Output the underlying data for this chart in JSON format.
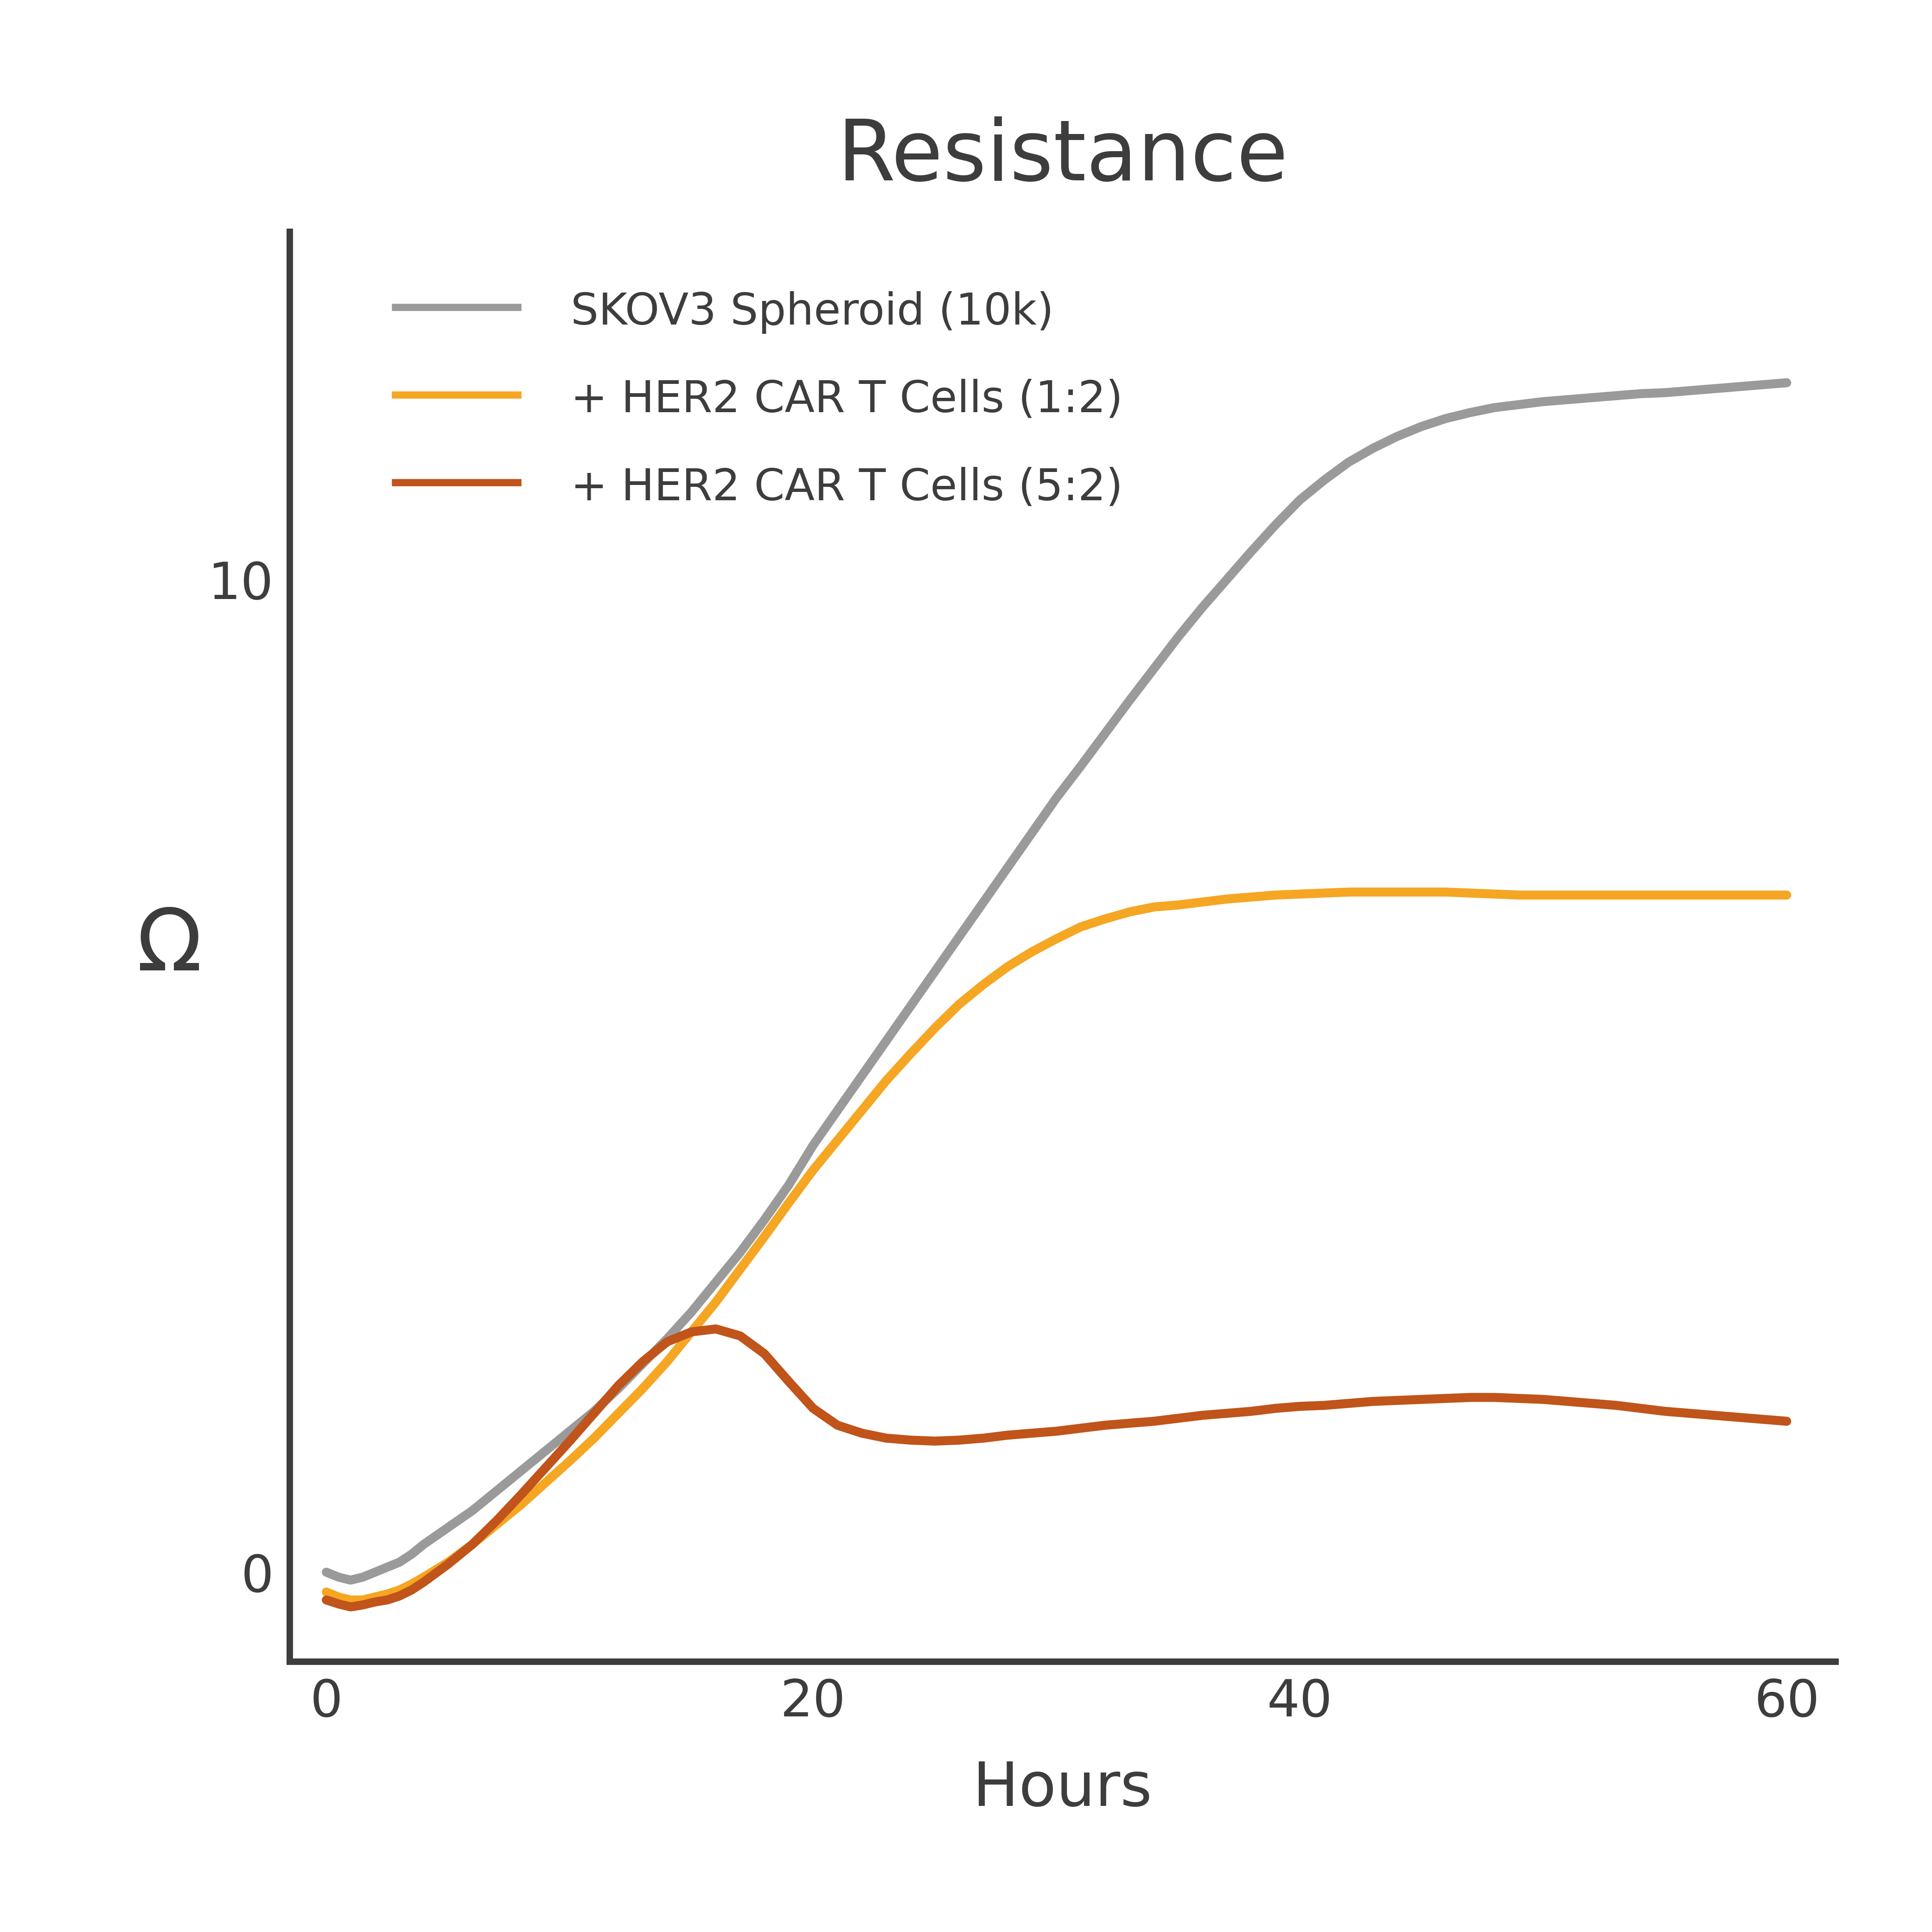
{
  "title": "Resistance",
  "xlabel": "Hours",
  "ylabel": "Ω",
  "xlim": [
    -1.5,
    62
  ],
  "ylim": [
    -0.9,
    13.5
  ],
  "xticks": [
    0,
    20,
    40,
    60
  ],
  "yticks": [
    0,
    10
  ],
  "background_color": "#ffffff",
  "title_fontsize": 130,
  "axis_label_fontsize": 95,
  "tick_fontsize": 80,
  "legend_fontsize": 68,
  "line_width": 14,
  "spine_color": "#3d3d3d",
  "text_color": "#3d3d3d",
  "series": [
    {
      "label": "SKOV3 Spheroid (10k)",
      "color": "#9a9a9a",
      "x": [
        0,
        0.5,
        1,
        1.5,
        2,
        2.5,
        3,
        3.5,
        4,
        5,
        6,
        7,
        8,
        9,
        10,
        11,
        12,
        13,
        14,
        15,
        16,
        17,
        18,
        19,
        20,
        21,
        22,
        23,
        24,
        25,
        26,
        27,
        28,
        29,
        30,
        31,
        32,
        33,
        34,
        35,
        36,
        37,
        38,
        39,
        40,
        41,
        42,
        43,
        44,
        45,
        46,
        47,
        48,
        49,
        50,
        51,
        52,
        53,
        54,
        55,
        56,
        57,
        58,
        59,
        60
      ],
      "y": [
        0.0,
        -0.05,
        -0.08,
        -0.05,
        0.0,
        0.05,
        0.1,
        0.18,
        0.28,
        0.45,
        0.62,
        0.82,
        1.02,
        1.22,
        1.42,
        1.62,
        1.85,
        2.1,
        2.35,
        2.62,
        2.92,
        3.22,
        3.55,
        3.9,
        4.3,
        4.65,
        5.0,
        5.35,
        5.7,
        6.05,
        6.4,
        6.75,
        7.1,
        7.45,
        7.8,
        8.12,
        8.45,
        8.78,
        9.1,
        9.42,
        9.72,
        10.0,
        10.28,
        10.55,
        10.8,
        11.0,
        11.18,
        11.32,
        11.44,
        11.54,
        11.62,
        11.68,
        11.73,
        11.76,
        11.79,
        11.81,
        11.83,
        11.85,
        11.87,
        11.88,
        11.9,
        11.92,
        11.94,
        11.96,
        11.98
      ]
    },
    {
      "label": "+ HER2 CAR T Cells (1:2)",
      "color": "#f5a623",
      "x": [
        0,
        0.5,
        1,
        1.5,
        2,
        2.5,
        3,
        3.5,
        4,
        5,
        6,
        7,
        8,
        9,
        10,
        11,
        12,
        13,
        14,
        15,
        16,
        17,
        18,
        19,
        20,
        21,
        22,
        23,
        24,
        25,
        26,
        27,
        28,
        29,
        30,
        31,
        32,
        33,
        34,
        35,
        36,
        37,
        38,
        39,
        40,
        41,
        42,
        43,
        44,
        45,
        46,
        47,
        48,
        49,
        50,
        51,
        52,
        53,
        54,
        55,
        56,
        57,
        58,
        59,
        60
      ],
      "y": [
        -0.2,
        -0.25,
        -0.28,
        -0.28,
        -0.25,
        -0.22,
        -0.18,
        -0.12,
        -0.05,
        0.1,
        0.28,
        0.48,
        0.68,
        0.9,
        1.12,
        1.35,
        1.6,
        1.85,
        2.12,
        2.42,
        2.72,
        3.05,
        3.38,
        3.72,
        4.05,
        4.35,
        4.65,
        4.95,
        5.22,
        5.48,
        5.72,
        5.92,
        6.1,
        6.25,
        6.38,
        6.5,
        6.58,
        6.65,
        6.7,
        6.72,
        6.75,
        6.78,
        6.8,
        6.82,
        6.83,
        6.84,
        6.85,
        6.85,
        6.85,
        6.85,
        6.85,
        6.84,
        6.83,
        6.82,
        6.82,
        6.82,
        6.82,
        6.82,
        6.82,
        6.82,
        6.82,
        6.82,
        6.82,
        6.82,
        6.82
      ]
    },
    {
      "label": "+ HER2 CAR T Cells (5:2)",
      "color": "#c0541a",
      "x": [
        0,
        0.5,
        1,
        1.5,
        2,
        2.5,
        3,
        3.5,
        4,
        5,
        6,
        7,
        8,
        9,
        10,
        11,
        12,
        13,
        14,
        15,
        16,
        17,
        18,
        19,
        20,
        21,
        22,
        23,
        24,
        25,
        26,
        27,
        28,
        29,
        30,
        31,
        32,
        33,
        34,
        35,
        36,
        37,
        38,
        39,
        40,
        41,
        42,
        43,
        44,
        45,
        46,
        47,
        48,
        49,
        50,
        51,
        52,
        53,
        54,
        55,
        56,
        57,
        58,
        59,
        60
      ],
      "y": [
        -0.28,
        -0.32,
        -0.35,
        -0.33,
        -0.3,
        -0.28,
        -0.24,
        -0.18,
        -0.1,
        0.08,
        0.28,
        0.52,
        0.78,
        1.05,
        1.32,
        1.6,
        1.88,
        2.12,
        2.32,
        2.42,
        2.45,
        2.38,
        2.2,
        1.92,
        1.65,
        1.48,
        1.4,
        1.35,
        1.33,
        1.32,
        1.33,
        1.35,
        1.38,
        1.4,
        1.42,
        1.45,
        1.48,
        1.5,
        1.52,
        1.55,
        1.58,
        1.6,
        1.62,
        1.65,
        1.67,
        1.68,
        1.7,
        1.72,
        1.73,
        1.74,
        1.75,
        1.76,
        1.76,
        1.75,
        1.74,
        1.72,
        1.7,
        1.68,
        1.65,
        1.62,
        1.6,
        1.58,
        1.56,
        1.54,
        1.52
      ]
    }
  ]
}
